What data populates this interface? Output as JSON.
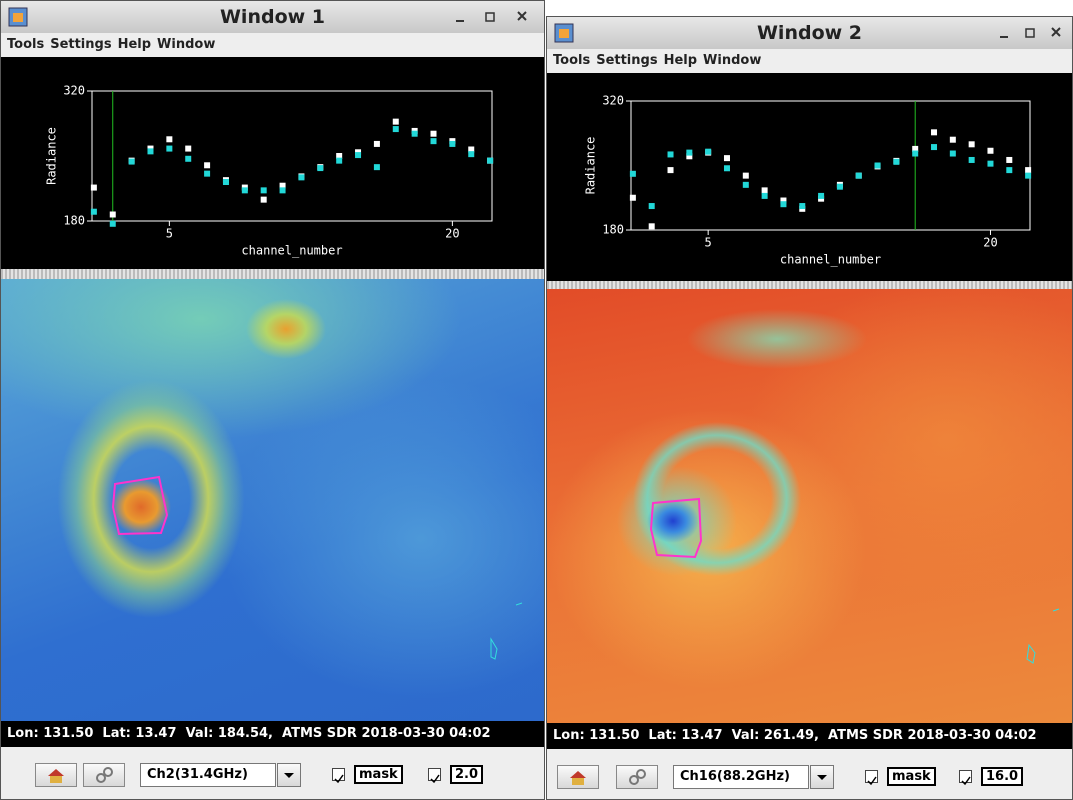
{
  "windows": [
    {
      "title": "Window 1",
      "menu": [
        "Tools",
        "Settings",
        "Help",
        "Window"
      ],
      "status": "Lon: 131.50  Lat: 13.47  Val: 184.54,  ATMS SDR 2018-03-30 04:02",
      "channel": "Ch2(31.4GHz)",
      "mask_label": "mask",
      "scale": "2.0"
    },
    {
      "title": "Window 2",
      "menu": [
        "Tools",
        "Settings",
        "Help",
        "Window"
      ],
      "status": "Lon: 131.50  Lat: 13.47  Val: 261.49,  ATMS SDR 2018-03-30 04:02",
      "channel": "Ch16(88.2GHz)",
      "mask_label": "mask",
      "scale": "16.0"
    }
  ],
  "chart_data": [
    {
      "type": "scatter",
      "x_label": "channel_number",
      "y_label": "Radiance",
      "x": [
        1,
        2,
        3,
        4,
        5,
        6,
        7,
        8,
        9,
        10,
        11,
        12,
        13,
        14,
        15,
        16,
        17,
        18,
        19,
        20,
        21,
        22
      ],
      "series": [
        {
          "color": "#ffffff",
          "values": [
            216,
            187,
            245,
            258,
            268,
            258,
            240,
            224,
            216,
            203,
            218,
            228,
            238,
            250,
            254,
            263,
            287,
            277,
            274,
            266,
            257,
            245
          ]
        },
        {
          "color": "#22d8d8",
          "values": [
            190,
            177,
            244,
            255,
            258,
            247,
            231,
            222,
            213,
            213,
            213,
            227,
            237,
            245,
            251,
            238,
            279,
            274,
            266,
            263,
            252,
            245
          ]
        }
      ],
      "xlim": [
        0.9,
        22.1
      ],
      "ylim": [
        180,
        320
      ],
      "xticks": [
        5,
        20
      ],
      "yticks": [
        180,
        320
      ],
      "cursor_x": 2,
      "cursor_color": "#22c022"
    },
    {
      "type": "scatter",
      "x_label": "channel_number",
      "y_label": "Radiance",
      "x": [
        1,
        2,
        3,
        4,
        5,
        6,
        7,
        8,
        9,
        10,
        11,
        12,
        13,
        14,
        15,
        16,
        17,
        18,
        19,
        20,
        21,
        22
      ],
      "series": [
        {
          "color": "#ffffff",
          "values": [
            215,
            184,
            245,
            260,
            264,
            258,
            239,
            223,
            212,
            203,
            214,
            229,
            239,
            249,
            255,
            268,
            286,
            278,
            273,
            266,
            256,
            245
          ]
        },
        {
          "color": "#22d8d8",
          "values": [
            241,
            206,
            262,
            264,
            265,
            247,
            229,
            217,
            208,
            206,
            217,
            227,
            239,
            250,
            254,
            263,
            270,
            263,
            256,
            252,
            245,
            239
          ]
        }
      ],
      "xlim": [
        0.9,
        22.1
      ],
      "ylim": [
        180,
        320
      ],
      "xticks": [
        5,
        20
      ],
      "yticks": [
        180,
        320
      ],
      "cursor_x": 16,
      "cursor_color": "#22c022"
    }
  ]
}
